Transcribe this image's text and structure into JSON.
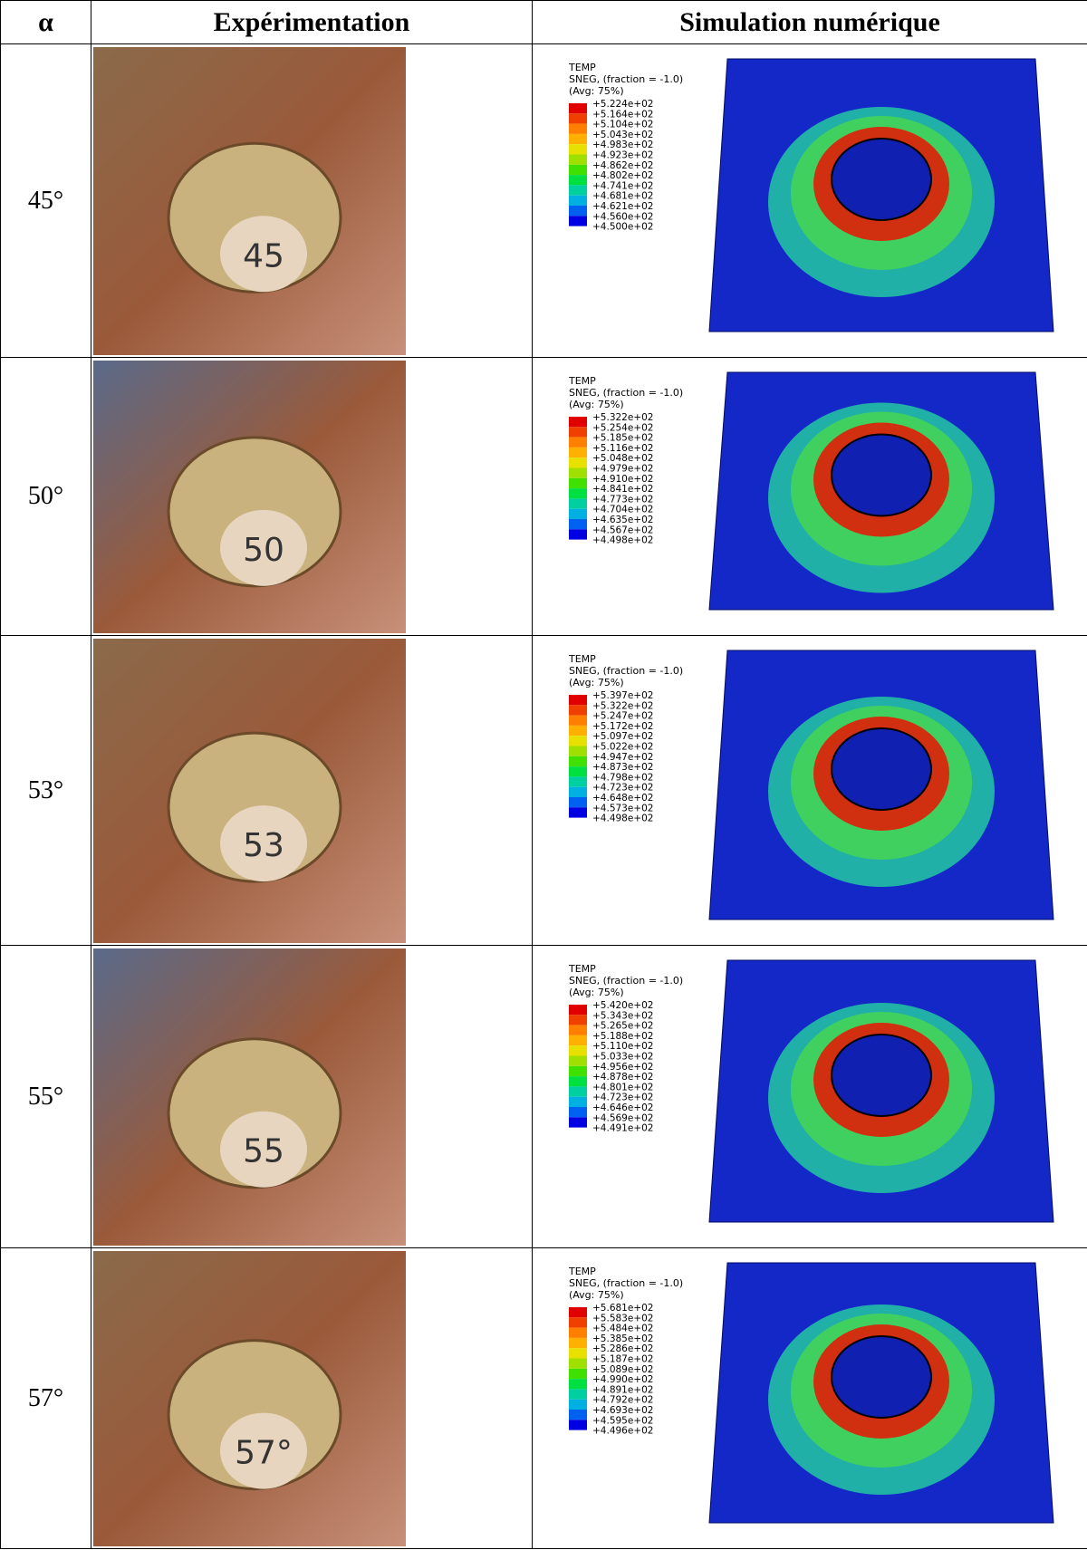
{
  "table": {
    "header": [
      "α",
      "Expérimentation",
      "Simulation numérique"
    ],
    "rows": [
      {
        "angle": "45°",
        "photo_label": "45",
        "legend": {
          "title": "TEMP",
          "subtitle": "SNEG, (fraction = -1.0)",
          "avg": "(Avg: 75%)",
          "values": [
            "+5.224e+02",
            "+5.164e+02",
            "+5.104e+02",
            "+5.043e+02",
            "+4.983e+02",
            "+4.923e+02",
            "+4.862e+02",
            "+4.802e+02",
            "+4.741e+02",
            "+4.681e+02",
            "+4.621e+02",
            "+4.560e+02",
            "+4.500e+02"
          ]
        }
      },
      {
        "angle": "50°",
        "photo_label": "50",
        "legend": {
          "title": "TEMP",
          "subtitle": "SNEG, (fraction = -1.0)",
          "avg": "(Avg: 75%)",
          "values": [
            "+5.322e+02",
            "+5.254e+02",
            "+5.185e+02",
            "+5.116e+02",
            "+5.048e+02",
            "+4.979e+02",
            "+4.910e+02",
            "+4.841e+02",
            "+4.773e+02",
            "+4.704e+02",
            "+4.635e+02",
            "+4.567e+02",
            "+4.498e+02"
          ]
        }
      },
      {
        "angle": "53°",
        "photo_label": "53",
        "legend": {
          "title": "TEMP",
          "subtitle": "SNEG, (fraction = -1.0)",
          "avg": "(Avg: 75%)",
          "values": [
            "+5.397e+02",
            "+5.322e+02",
            "+5.247e+02",
            "+5.172e+02",
            "+5.097e+02",
            "+5.022e+02",
            "+4.947e+02",
            "+4.873e+02",
            "+4.798e+02",
            "+4.723e+02",
            "+4.648e+02",
            "+4.573e+02",
            "+4.498e+02"
          ]
        }
      },
      {
        "angle": "55°",
        "photo_label": "55",
        "legend": {
          "title": "TEMP",
          "subtitle": "SNEG, (fraction = -1.0)",
          "avg": "(Avg: 75%)",
          "values": [
            "+5.420e+02",
            "+5.343e+02",
            "+5.265e+02",
            "+5.188e+02",
            "+5.110e+02",
            "+5.033e+02",
            "+4.956e+02",
            "+4.878e+02",
            "+4.801e+02",
            "+4.723e+02",
            "+4.646e+02",
            "+4.569e+02",
            "+4.491e+02"
          ]
        }
      },
      {
        "angle": "57°",
        "photo_label": "57°",
        "legend": {
          "title": "TEMP",
          "subtitle": "SNEG, (fraction = -1.0)",
          "avg": "(Avg: 75%)",
          "values": [
            "+5.681e+02",
            "+5.583e+02",
            "+5.484e+02",
            "+5.385e+02",
            "+5.286e+02",
            "+5.187e+02",
            "+5.089e+02",
            "+4.990e+02",
            "+4.891e+02",
            "+4.792e+02",
            "+4.693e+02",
            "+4.595e+02",
            "+4.496e+02"
          ]
        }
      }
    ]
  }
}
